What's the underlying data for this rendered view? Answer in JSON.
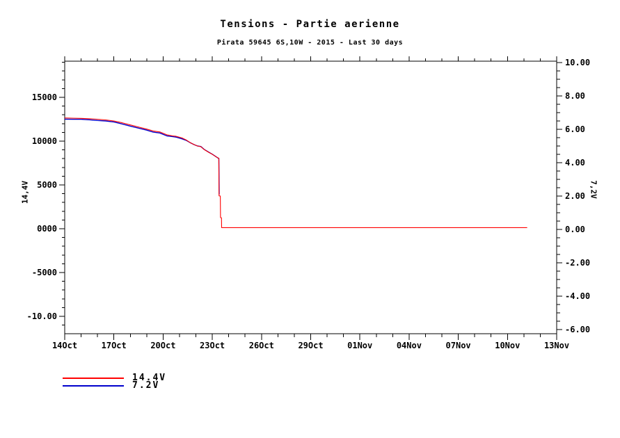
{
  "chart_data": {
    "type": "line",
    "title": "Tensions - Partie aerienne",
    "subtitle": "Pirata 59645 6S,10W - 2015 - Last 30 days",
    "grid": false,
    "x_axis": {
      "unit": "date, Oct-Nov 2015",
      "lim_days": [
        0,
        30
      ],
      "tick_days": [
        0,
        3,
        6,
        9,
        12,
        15,
        18,
        21,
        24,
        27,
        30
      ],
      "tick_labels": [
        "14Oct",
        "17Oct",
        "20Oct",
        "23Oct",
        "26Oct",
        "29Oct",
        "01Nov",
        "04Nov",
        "07Nov",
        "10Nov",
        "13Nov"
      ],
      "minor_step_days": 1
    },
    "left_axis": {
      "label": "14,4V",
      "lim": [
        -11980,
        19130
      ],
      "tick_values": [
        15000,
        10000,
        5000,
        0,
        -5000,
        -10000
      ],
      "tick_labels": [
        "15000",
        "10000",
        "5000",
        "0000",
        "-5000",
        "-10.00"
      ],
      "minor_step": 1000
    },
    "right_axis": {
      "label": "7,2V",
      "lim": [
        -6.25,
        10.0833
      ],
      "tick_values": [
        10,
        8,
        6,
        4,
        2,
        0,
        -2,
        -4,
        -6
      ],
      "tick_labels": [
        "10.00",
        "8.00",
        "6.00",
        "4.00",
        "2.00",
        "0.00",
        "-2.00",
        "-4.00",
        "-6.00"
      ],
      "minor_step": 0.5
    },
    "series": [
      {
        "name": "7.2V",
        "color": "#0000cc",
        "axis": "right",
        "points": [
          [
            0,
            6.61
          ],
          [
            0.5,
            6.6
          ],
          [
            1,
            6.6
          ],
          [
            1.5,
            6.57
          ],
          [
            2,
            6.53
          ],
          [
            2.5,
            6.5
          ],
          [
            3,
            6.44
          ],
          [
            3.5,
            6.32
          ],
          [
            4,
            6.19
          ],
          [
            4.55,
            6.06
          ],
          [
            5,
            5.95
          ],
          [
            5.4,
            5.83
          ],
          [
            5.8,
            5.78
          ],
          [
            6.25,
            5.6
          ],
          [
            6.6,
            5.56
          ],
          [
            6.8,
            5.53
          ],
          [
            7.15,
            5.43
          ],
          [
            7.4,
            5.34
          ],
          [
            7.65,
            5.2
          ],
          [
            7.9,
            5.08
          ],
          [
            8.1,
            5.0
          ],
          [
            8.3,
            4.97
          ],
          [
            8.5,
            4.8
          ],
          [
            8.8,
            4.62
          ],
          [
            9,
            4.51
          ],
          [
            9.2,
            4.38
          ],
          [
            9.35,
            4.28
          ],
          [
            9.4,
            4.26
          ],
          [
            9.42,
            2.1
          ]
        ]
      },
      {
        "name": "14.4V",
        "color": "#ff0000",
        "axis": "left",
        "points": [
          [
            0,
            12650
          ],
          [
            0.5,
            12620
          ],
          [
            1,
            12600
          ],
          [
            1.5,
            12560
          ],
          [
            2,
            12500
          ],
          [
            2.5,
            12420
          ],
          [
            3,
            12300
          ],
          [
            3.5,
            12100
          ],
          [
            4,
            11850
          ],
          [
            4.55,
            11590
          ],
          [
            5,
            11380
          ],
          [
            5.4,
            11160
          ],
          [
            5.8,
            11050
          ],
          [
            6.25,
            10710
          ],
          [
            6.6,
            10600
          ],
          [
            6.8,
            10550
          ],
          [
            7.15,
            10370
          ],
          [
            7.4,
            10150
          ],
          [
            7.65,
            9840
          ],
          [
            7.9,
            9600
          ],
          [
            8.1,
            9450
          ],
          [
            8.3,
            9380
          ],
          [
            8.5,
            9050
          ],
          [
            8.8,
            8700
          ],
          [
            9,
            8500
          ],
          [
            9.2,
            8250
          ],
          [
            9.35,
            8080
          ],
          [
            9.4,
            8050
          ],
          [
            9.41,
            3760
          ],
          [
            9.49,
            3740
          ],
          [
            9.5,
            1270
          ],
          [
            9.56,
            1250
          ],
          [
            9.57,
            130
          ],
          [
            28.2,
            130
          ]
        ]
      }
    ],
    "legend": {
      "position": "bottom-left",
      "entries": [
        {
          "label": "14.4V",
          "color": "#ff0000"
        },
        {
          "label": "7.2V",
          "color": "#0000cc"
        }
      ]
    }
  }
}
